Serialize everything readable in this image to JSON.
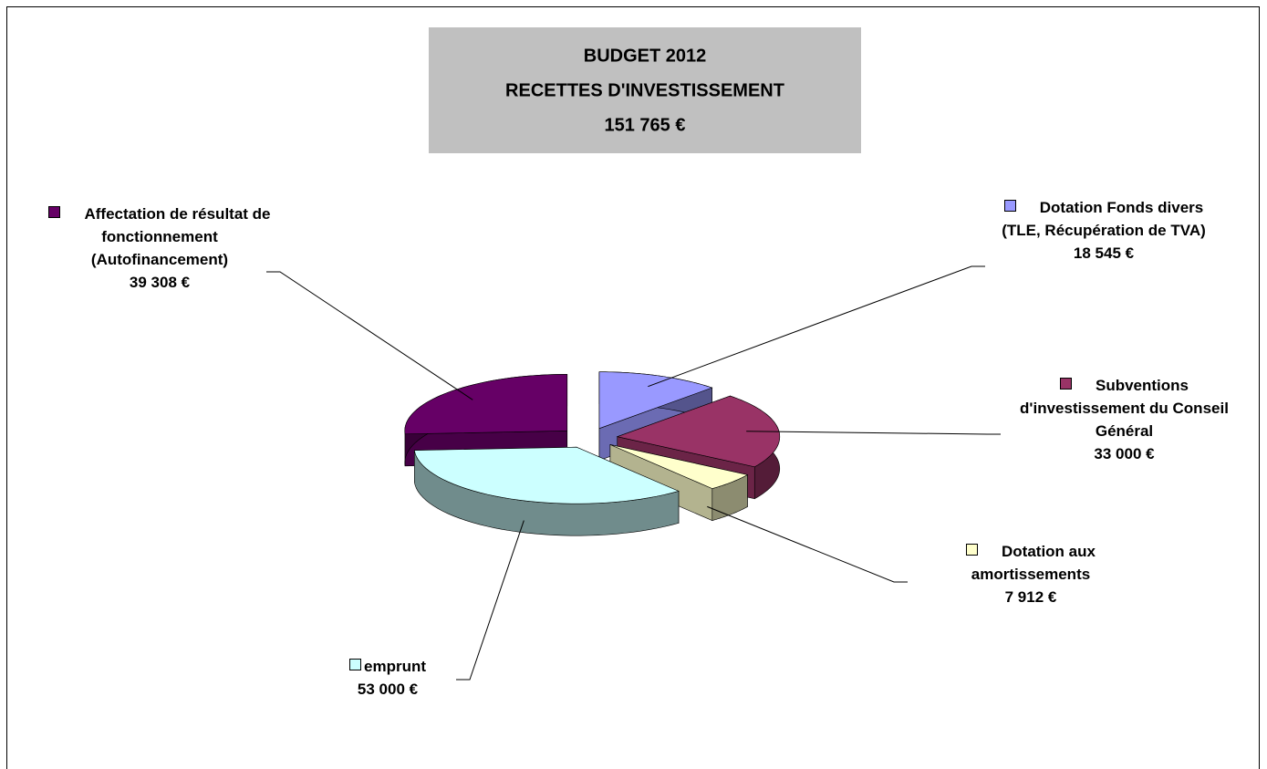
{
  "chart_data": {
    "type": "pie3d",
    "title": [
      "BUDGET 2012",
      "RECETTES D'INVESTISSEMENT",
      "151 765 €"
    ],
    "categories": [
      "Dotation Fonds divers (TLE, Récupération de TVA)",
      "Subventions d'investissement du Conseil Général",
      "Dotation aux amortissements",
      "emprunt",
      "Affectation de résultat de fonctionnement (Autofinancement)"
    ],
    "values": [
      18545,
      33000,
      7912,
      53000,
      39308
    ],
    "value_labels": [
      "18 545 €",
      "33 000 €",
      "7 912 €",
      "53 000 €",
      "39 308 €"
    ],
    "colors": [
      "#9999ff",
      "#993366",
      "#ffffcc",
      "#ccffff",
      "#660066"
    ]
  }
}
